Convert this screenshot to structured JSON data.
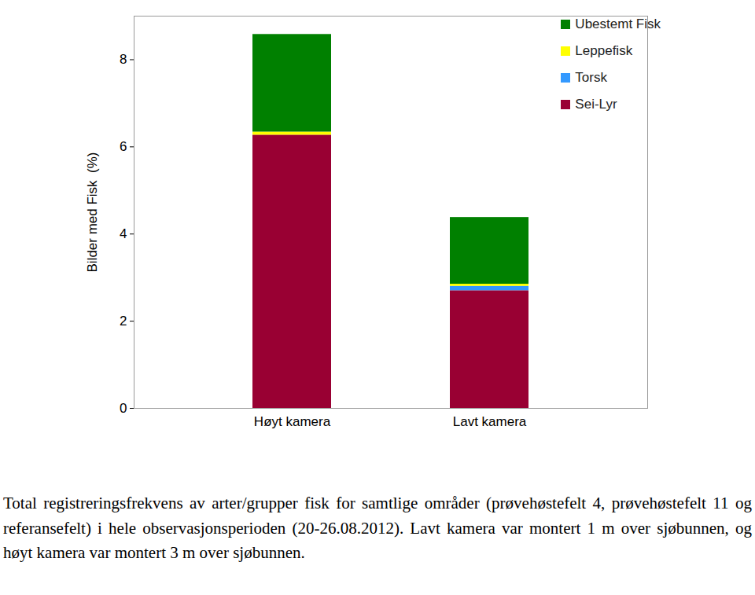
{
  "chart_data": {
    "type": "bar",
    "stacked": true,
    "categories": [
      "Høyt kamera",
      "Lavt kamera"
    ],
    "series": [
      {
        "name": "Sei-Lyr",
        "color": "#990033",
        "values": [
          6.27,
          2.7
        ]
      },
      {
        "name": "Torsk",
        "color": "#3399ff",
        "values": [
          0,
          0.1
        ]
      },
      {
        "name": "Leppefisk",
        "color": "#ffff00",
        "values": [
          0.07,
          0.05
        ]
      },
      {
        "name": "Ubestemt Fisk",
        "color": "#008000",
        "values": [
          2.24,
          1.53
        ]
      }
    ],
    "y_label": "Bilder med Fisk  (%)",
    "ylim": [
      0,
      9
    ],
    "yticks": [
      0,
      2,
      4,
      6,
      8
    ],
    "grid": false,
    "legend": "top-right",
    "caption": "Total registreringsfrekvens av arter/grupper fisk for samtlige områder (prøvehøstefelt 4, prøvehøstefelt 11 og referansefelt) i hele observasjonsperioden (20-26.08.2012). Lavt kamera var montert 1 m over sjøbunnen, og høyt kamera var montert 3 m over sjøbunnen."
  }
}
